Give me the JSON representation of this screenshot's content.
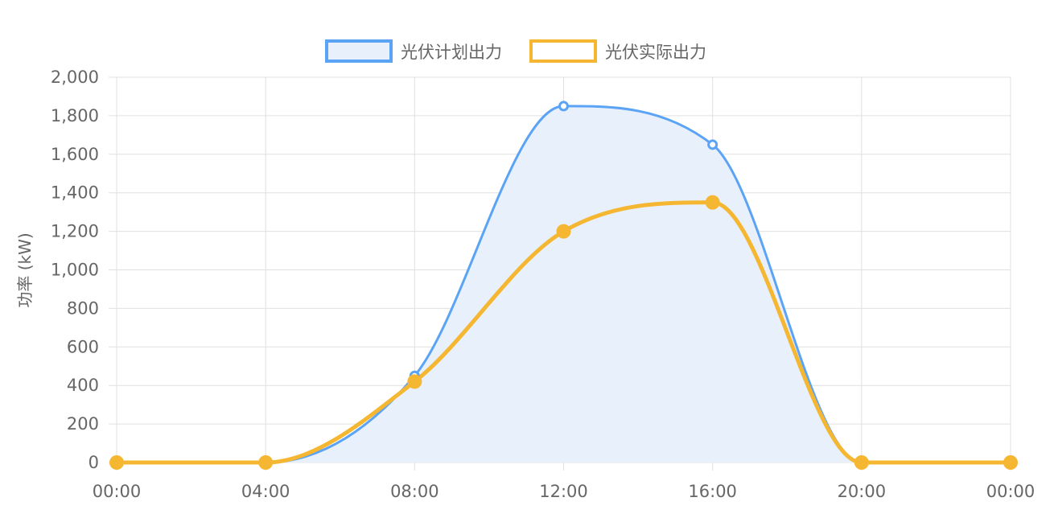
{
  "chart_data": {
    "type": "line",
    "x": [
      "00:00",
      "04:00",
      "08:00",
      "12:00",
      "16:00",
      "20:00",
      "00:00"
    ],
    "series": [
      {
        "name": "光伏计划出力",
        "values": [
          0,
          0,
          450,
          1850,
          1650,
          0,
          0
        ],
        "color": "#5ba3f5",
        "fill": "#e8f0fc",
        "area": true
      },
      {
        "name": "光伏实际出力",
        "values": [
          0,
          0,
          420,
          1200,
          1350,
          0,
          0
        ],
        "color": "#f5b731",
        "area": false
      }
    ],
    "ylabel": "功率 (kW)",
    "xlabel": "",
    "ylim": [
      0,
      2000
    ],
    "yticks": [
      "0",
      "200",
      "400",
      "600",
      "800",
      "1,000",
      "1,200",
      "1,400",
      "1,600",
      "1,800",
      "2,000"
    ],
    "grid": true,
    "legend_position": "top-center"
  }
}
